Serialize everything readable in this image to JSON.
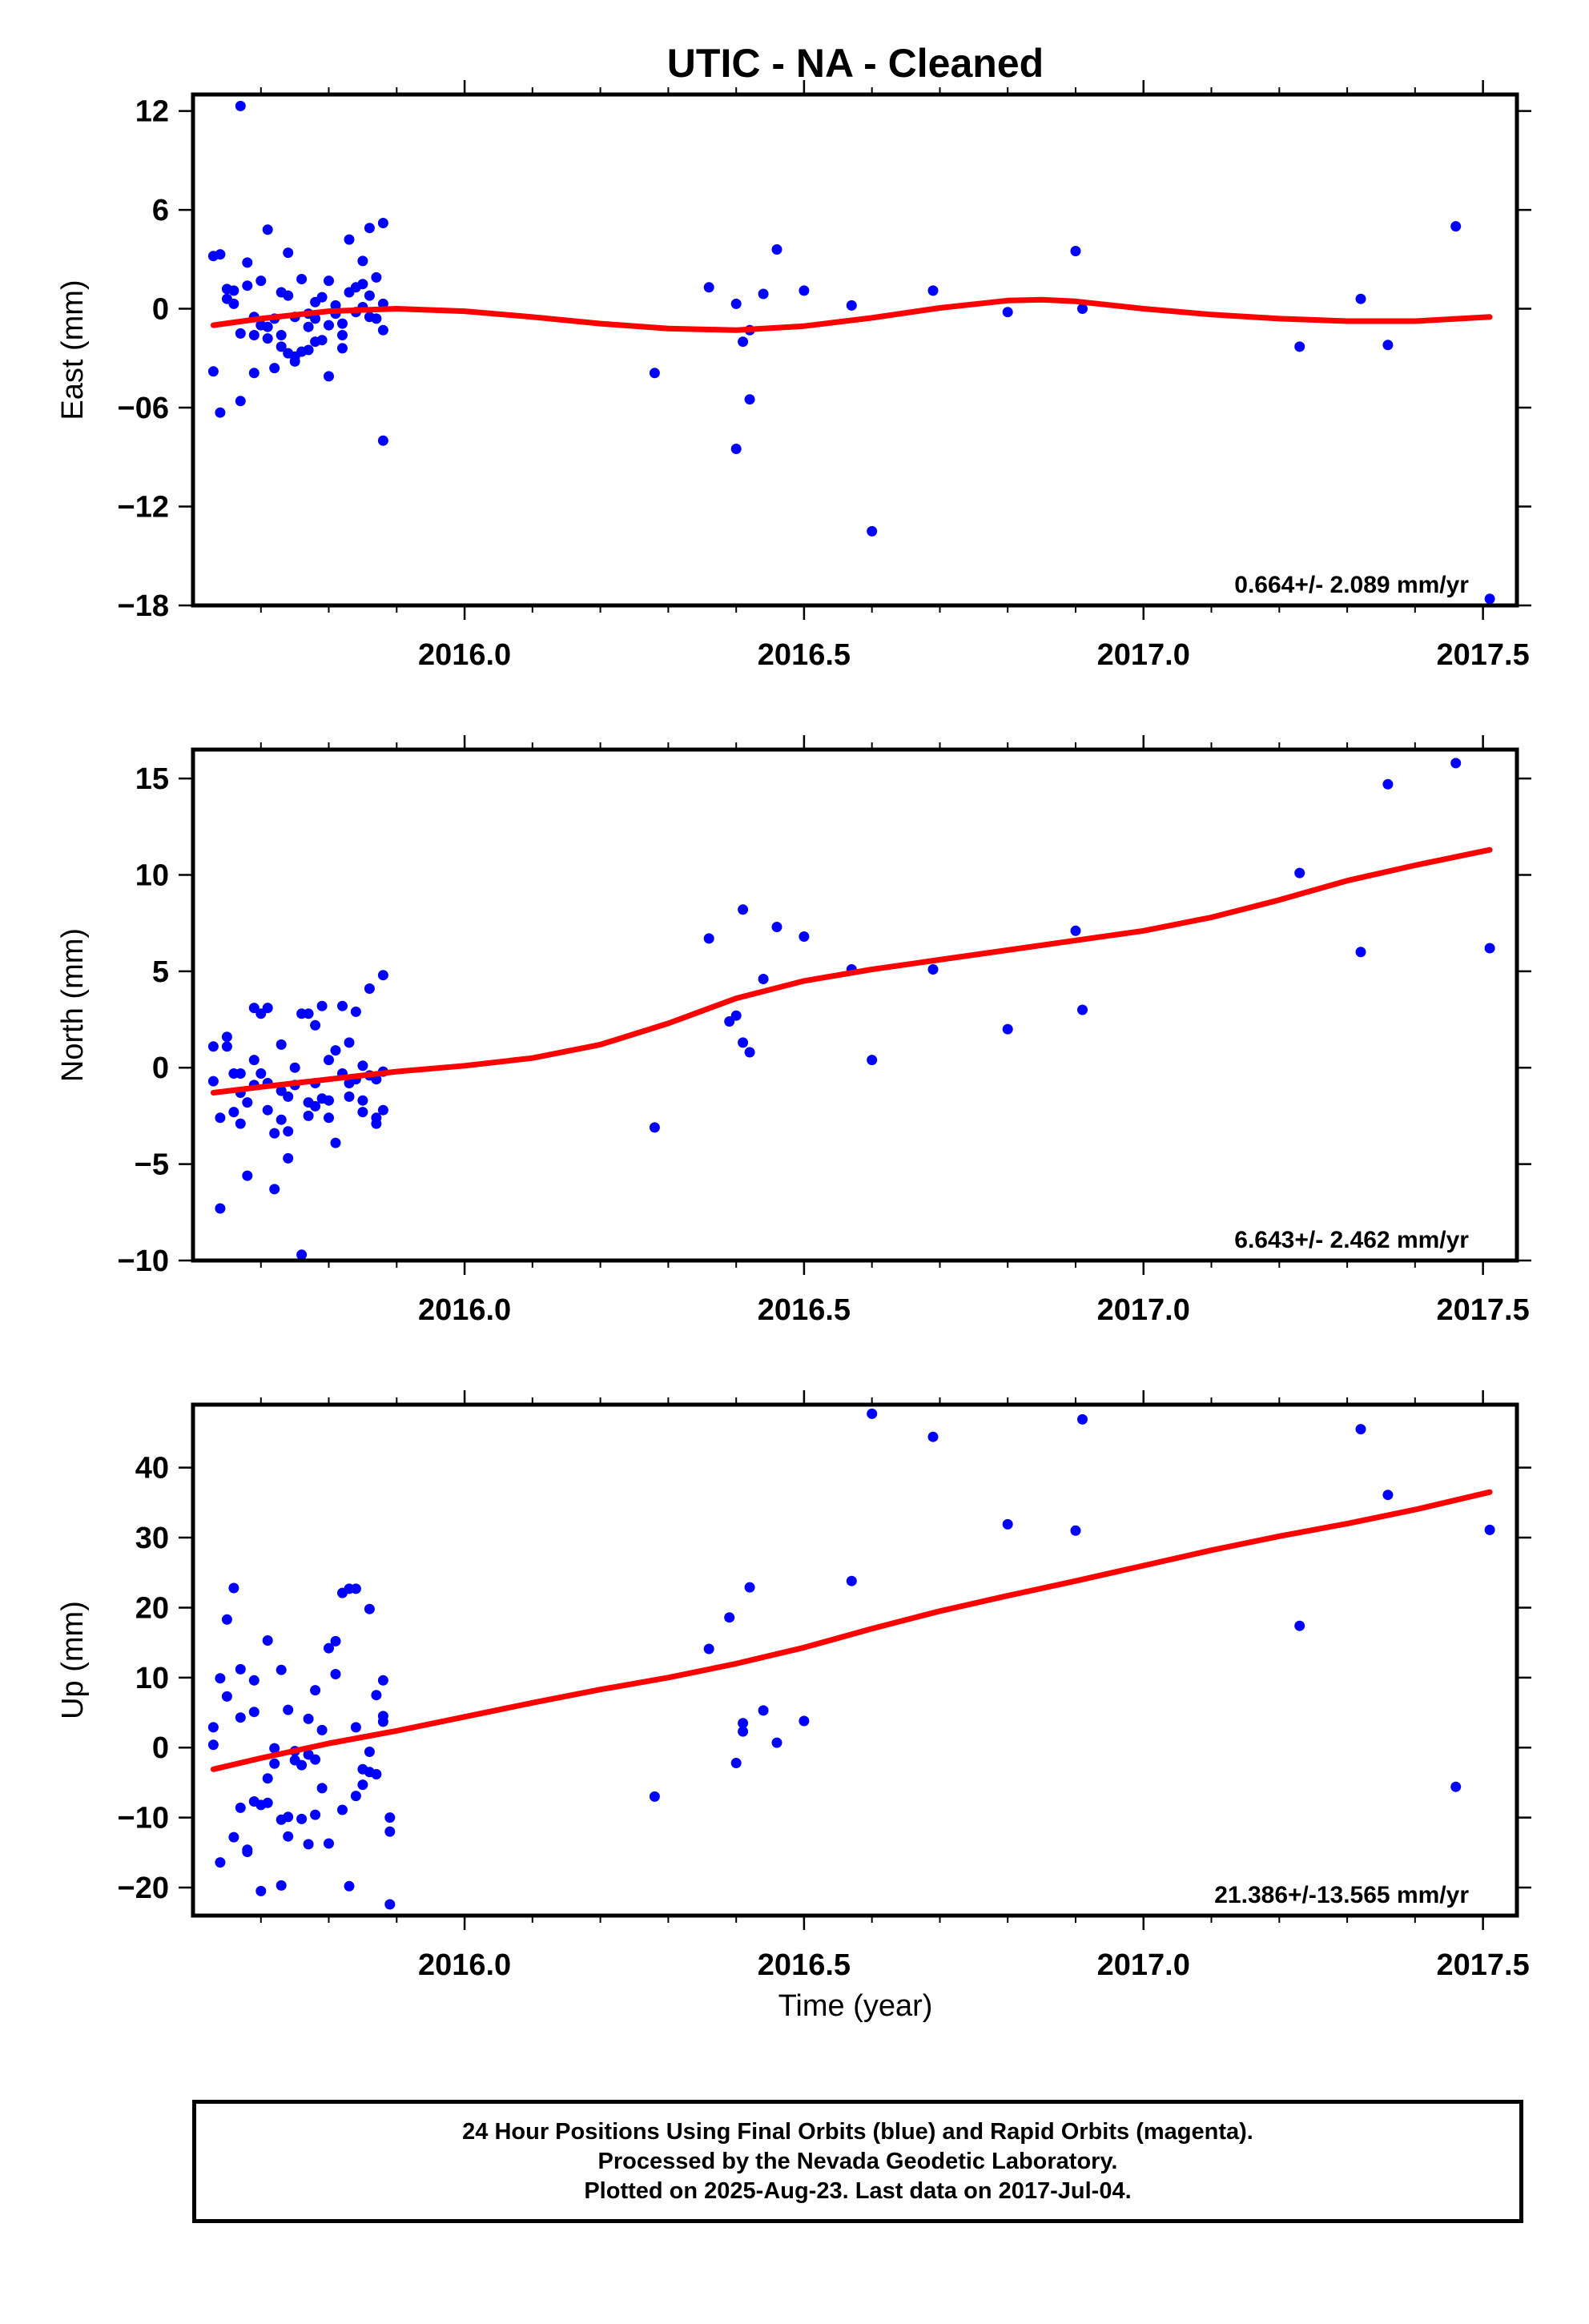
{
  "title": "UTIC  - NA - Cleaned",
  "xlabel": "Time (year)",
  "colors": {
    "points": "#0000ff",
    "fit": "#ff0000",
    "axes": "#000000"
  },
  "footer": {
    "line1": "24 Hour Positions Using Final Orbits (blue) and Rapid Orbits (magenta).",
    "line2": "Processed by the Nevada Geodetic Laboratory.",
    "line3": "Plotted on 2025-Aug-23. Last data on 2017-Jul-04."
  },
  "chart_data": [
    {
      "type": "scatter",
      "ylabel": "East (mm)",
      "rate": "0.664+/- 2.089 mm/yr",
      "xlim": [
        2015.6,
        2017.55
      ],
      "ylim": [
        -18,
        13
      ],
      "xticks": [
        2016.0,
        2016.5,
        2017.0,
        2017.5
      ],
      "xticklabels": [
        "2016.0",
        "2016.5",
        "2017.0",
        "2017.5"
      ],
      "yticks": [
        12,
        6,
        0,
        -6,
        -12,
        -18
      ],
      "yticklabels": [
        "12",
        "6",
        "0",
        "−06",
        "−12",
        "−18"
      ],
      "points": [
        [
          2015.63,
          3.2
        ],
        [
          2015.64,
          3.3
        ],
        [
          2015.63,
          -3.8
        ],
        [
          2015.64,
          -6.3
        ],
        [
          2015.65,
          0.6
        ],
        [
          2015.65,
          1.2
        ],
        [
          2015.66,
          1.1
        ],
        [
          2015.66,
          0.3
        ],
        [
          2015.67,
          12.3
        ],
        [
          2015.67,
          -1.5
        ],
        [
          2015.67,
          -5.6
        ],
        [
          2015.68,
          2.8
        ],
        [
          2015.68,
          1.4
        ],
        [
          2015.69,
          -1.6
        ],
        [
          2015.69,
          -0.5
        ],
        [
          2015.69,
          -3.9
        ],
        [
          2015.7,
          -1.0
        ],
        [
          2015.7,
          1.7
        ],
        [
          2015.71,
          4.8
        ],
        [
          2015.71,
          -1.8
        ],
        [
          2015.71,
          -1.1
        ],
        [
          2015.72,
          -3.6
        ],
        [
          2015.72,
          -0.6
        ],
        [
          2015.73,
          -2.3
        ],
        [
          2015.73,
          -1.6
        ],
        [
          2015.73,
          1.0
        ],
        [
          2015.74,
          0.8
        ],
        [
          2015.74,
          3.4
        ],
        [
          2015.74,
          -2.7
        ],
        [
          2015.75,
          -0.5
        ],
        [
          2015.75,
          -3.2
        ],
        [
          2015.75,
          -2.9
        ],
        [
          2015.76,
          -2.6
        ],
        [
          2015.76,
          1.8
        ],
        [
          2015.77,
          -0.3
        ],
        [
          2015.77,
          -2.5
        ],
        [
          2015.77,
          -1.1
        ],
        [
          2015.78,
          0.4
        ],
        [
          2015.78,
          -2.0
        ],
        [
          2015.78,
          -0.6
        ],
        [
          2015.79,
          0.7
        ],
        [
          2015.79,
          -1.9
        ],
        [
          2015.8,
          -4.1
        ],
        [
          2015.8,
          1.7
        ],
        [
          2015.8,
          -1.0
        ],
        [
          2015.81,
          0.2
        ],
        [
          2015.81,
          -0.3
        ],
        [
          2015.82,
          -1.6
        ],
        [
          2015.82,
          -2.4
        ],
        [
          2015.82,
          -0.9
        ],
        [
          2015.83,
          4.2
        ],
        [
          2015.83,
          1.0
        ],
        [
          2015.84,
          1.3
        ],
        [
          2015.84,
          -0.2
        ],
        [
          2015.85,
          1.5
        ],
        [
          2015.85,
          2.9
        ],
        [
          2015.85,
          0.1
        ],
        [
          2015.86,
          -0.5
        ],
        [
          2015.86,
          4.9
        ],
        [
          2015.86,
          0.8
        ],
        [
          2015.87,
          1.9
        ],
        [
          2015.87,
          -0.6
        ],
        [
          2015.88,
          -1.3
        ],
        [
          2015.88,
          0.3
        ],
        [
          2015.88,
          5.2
        ],
        [
          2015.88,
          -8.0
        ],
        [
          2016.28,
          -3.9
        ],
        [
          2016.36,
          1.3
        ],
        [
          2016.4,
          0.3
        ],
        [
          2016.4,
          -8.5
        ],
        [
          2016.41,
          -2.0
        ],
        [
          2016.42,
          -1.3
        ],
        [
          2016.42,
          -5.5
        ],
        [
          2016.44,
          0.9
        ],
        [
          2016.46,
          3.6
        ],
        [
          2016.5,
          1.1
        ],
        [
          2016.57,
          0.2
        ],
        [
          2016.6,
          -13.5
        ],
        [
          2016.69,
          1.1
        ],
        [
          2016.8,
          -0.2
        ],
        [
          2016.9,
          3.5
        ],
        [
          2016.91,
          0.0
        ],
        [
          2017.23,
          -2.3
        ],
        [
          2017.32,
          0.6
        ],
        [
          2017.36,
          -2.2
        ],
        [
          2017.46,
          5.0
        ],
        [
          2017.51,
          -17.6
        ]
      ],
      "fit": [
        [
          2015.63,
          -1.0
        ],
        [
          2015.7,
          -0.6
        ],
        [
          2015.8,
          -0.15
        ],
        [
          2015.9,
          0.0
        ],
        [
          2016.0,
          -0.15
        ],
        [
          2016.1,
          -0.5
        ],
        [
          2016.2,
          -0.9
        ],
        [
          2016.3,
          -1.2
        ],
        [
          2016.4,
          -1.3
        ],
        [
          2016.5,
          -1.05
        ],
        [
          2016.6,
          -0.55
        ],
        [
          2016.7,
          0.05
        ],
        [
          2016.8,
          0.5
        ],
        [
          2016.85,
          0.55
        ],
        [
          2016.9,
          0.45
        ],
        [
          2017.0,
          0.0
        ],
        [
          2017.1,
          -0.35
        ],
        [
          2017.2,
          -0.6
        ],
        [
          2017.3,
          -0.75
        ],
        [
          2017.4,
          -0.75
        ],
        [
          2017.51,
          -0.5
        ]
      ]
    },
    {
      "type": "scatter",
      "ylabel": "North (mm)",
      "rate": "6.643+/- 2.462 mm/yr",
      "xlim": [
        2015.6,
        2017.55
      ],
      "ylim": [
        -10,
        16.5
      ],
      "xticks": [
        2016.0,
        2016.5,
        2017.0,
        2017.5
      ],
      "xticklabels": [
        "2016.0",
        "2016.5",
        "2017.0",
        "2017.5"
      ],
      "yticks": [
        15,
        10,
        5,
        0,
        -5,
        -10
      ],
      "yticklabels": [
        "15",
        "10",
        "5",
        "0",
        "−5",
        "−10"
      ],
      "points": [
        [
          2015.63,
          1.1
        ],
        [
          2015.63,
          -0.7
        ],
        [
          2015.64,
          -7.3
        ],
        [
          2015.64,
          -2.6
        ],
        [
          2015.65,
          1.1
        ],
        [
          2015.65,
          1.6
        ],
        [
          2015.66,
          -0.3
        ],
        [
          2015.66,
          -2.3
        ],
        [
          2015.67,
          -0.3
        ],
        [
          2015.67,
          -1.3
        ],
        [
          2015.67,
          -2.9
        ],
        [
          2015.68,
          -5.6
        ],
        [
          2015.68,
          -1.8
        ],
        [
          2015.69,
          0.4
        ],
        [
          2015.69,
          -0.9
        ],
        [
          2015.69,
          3.1
        ],
        [
          2015.7,
          2.8
        ],
        [
          2015.7,
          -0.3
        ],
        [
          2015.71,
          3.1
        ],
        [
          2015.71,
          -2.2
        ],
        [
          2015.71,
          -0.8
        ],
        [
          2015.72,
          -3.4
        ],
        [
          2015.72,
          -6.3
        ],
        [
          2015.73,
          1.2
        ],
        [
          2015.73,
          -1.2
        ],
        [
          2015.73,
          -2.7
        ],
        [
          2015.74,
          -4.7
        ],
        [
          2015.74,
          -3.3
        ],
        [
          2015.74,
          -1.5
        ],
        [
          2015.75,
          -0.9
        ],
        [
          2015.75,
          0.0
        ],
        [
          2015.76,
          -9.7
        ],
        [
          2015.76,
          2.8
        ],
        [
          2015.77,
          -1.8
        ],
        [
          2015.77,
          -2.5
        ],
        [
          2015.77,
          2.8
        ],
        [
          2015.78,
          -0.8
        ],
        [
          2015.78,
          2.2
        ],
        [
          2015.78,
          -2.0
        ],
        [
          2015.79,
          -1.6
        ],
        [
          2015.79,
          3.2
        ],
        [
          2015.8,
          0.4
        ],
        [
          2015.8,
          -2.6
        ],
        [
          2015.8,
          -1.7
        ],
        [
          2015.81,
          -3.9
        ],
        [
          2015.81,
          0.9
        ],
        [
          2015.82,
          -0.3
        ],
        [
          2015.82,
          3.2
        ],
        [
          2015.83,
          -1.5
        ],
        [
          2015.83,
          -0.8
        ],
        [
          2015.83,
          1.3
        ],
        [
          2015.84,
          2.9
        ],
        [
          2015.84,
          -0.6
        ],
        [
          2015.85,
          -1.7
        ],
        [
          2015.85,
          0.1
        ],
        [
          2015.85,
          -2.3
        ],
        [
          2015.86,
          4.1
        ],
        [
          2015.86,
          -0.4
        ],
        [
          2015.87,
          -0.6
        ],
        [
          2015.87,
          -2.9
        ],
        [
          2015.88,
          4.8
        ],
        [
          2015.88,
          -0.2
        ],
        [
          2015.88,
          -2.2
        ],
        [
          2015.87,
          -2.6
        ],
        [
          2016.28,
          -3.1
        ],
        [
          2016.36,
          6.7
        ],
        [
          2016.39,
          2.4
        ],
        [
          2016.4,
          2.7
        ],
        [
          2016.41,
          8.2
        ],
        [
          2016.41,
          1.3
        ],
        [
          2016.42,
          0.8
        ],
        [
          2016.44,
          4.6
        ],
        [
          2016.46,
          7.3
        ],
        [
          2016.5,
          6.8
        ],
        [
          2016.57,
          5.1
        ],
        [
          2016.6,
          0.4
        ],
        [
          2016.69,
          5.1
        ],
        [
          2016.8,
          2.0
        ],
        [
          2016.9,
          7.1
        ],
        [
          2016.91,
          3.0
        ],
        [
          2017.23,
          10.1
        ],
        [
          2017.32,
          6.0
        ],
        [
          2017.36,
          14.7
        ],
        [
          2017.46,
          15.8
        ],
        [
          2017.51,
          6.2
        ]
      ],
      "fit": [
        [
          2015.63,
          -1.3
        ],
        [
          2015.7,
          -1.0
        ],
        [
          2015.8,
          -0.6
        ],
        [
          2015.9,
          -0.2
        ],
        [
          2016.0,
          0.1
        ],
        [
          2016.1,
          0.5
        ],
        [
          2016.2,
          1.2
        ],
        [
          2016.3,
          2.3
        ],
        [
          2016.4,
          3.6
        ],
        [
          2016.5,
          4.5
        ],
        [
          2016.6,
          5.1
        ],
        [
          2016.7,
          5.6
        ],
        [
          2016.8,
          6.1
        ],
        [
          2016.9,
          6.6
        ],
        [
          2017.0,
          7.1
        ],
        [
          2017.1,
          7.8
        ],
        [
          2017.2,
          8.7
        ],
        [
          2017.3,
          9.7
        ],
        [
          2017.4,
          10.5
        ],
        [
          2017.51,
          11.3
        ]
      ]
    },
    {
      "type": "scatter",
      "ylabel": "Up (mm)",
      "rate": "21.386+/-13.565 mm/yr",
      "xlim": [
        2015.6,
        2017.55
      ],
      "ylim": [
        -24,
        49
      ],
      "xticks": [
        2016.0,
        2016.5,
        2017.0,
        2017.5
      ],
      "xticklabels": [
        "2016.0",
        "2016.5",
        "2017.0",
        "2017.5"
      ],
      "yticks": [
        40,
        30,
        20,
        10,
        0,
        -10,
        -20
      ],
      "yticklabels": [
        "40",
        "30",
        "20",
        "10",
        "0",
        "−10",
        "−20"
      ],
      "points": [
        [
          2015.63,
          0.4
        ],
        [
          2015.63,
          2.9
        ],
        [
          2015.64,
          -16.4
        ],
        [
          2015.64,
          9.9
        ],
        [
          2015.65,
          18.3
        ],
        [
          2015.65,
          7.3
        ],
        [
          2015.66,
          22.8
        ],
        [
          2015.66,
          -12.8
        ],
        [
          2015.67,
          4.3
        ],
        [
          2015.67,
          -8.6
        ],
        [
          2015.67,
          11.2
        ],
        [
          2015.68,
          -14.6
        ],
        [
          2015.68,
          -14.9
        ],
        [
          2015.69,
          9.6
        ],
        [
          2015.69,
          5.1
        ],
        [
          2015.69,
          -7.7
        ],
        [
          2015.7,
          -20.5
        ],
        [
          2015.7,
          -8.2
        ],
        [
          2015.71,
          -4.4
        ],
        [
          2015.71,
          -7.9
        ],
        [
          2015.71,
          15.3
        ],
        [
          2015.72,
          -2.3
        ],
        [
          2015.72,
          -0.1
        ],
        [
          2015.73,
          11.1
        ],
        [
          2015.73,
          -10.3
        ],
        [
          2015.73,
          -19.7
        ],
        [
          2015.74,
          5.4
        ],
        [
          2015.74,
          -12.7
        ],
        [
          2015.74,
          -9.9
        ],
        [
          2015.75,
          -1.8
        ],
        [
          2015.75,
          -0.5
        ],
        [
          2015.76,
          -2.5
        ],
        [
          2015.76,
          -10.2
        ],
        [
          2015.77,
          4.1
        ],
        [
          2015.77,
          -1.0
        ],
        [
          2015.77,
          -13.8
        ],
        [
          2015.78,
          -1.7
        ],
        [
          2015.78,
          8.2
        ],
        [
          2015.78,
          -9.6
        ],
        [
          2015.79,
          -5.8
        ],
        [
          2015.79,
          2.5
        ],
        [
          2015.8,
          14.2
        ],
        [
          2015.8,
          -13.7
        ],
        [
          2015.81,
          15.2
        ],
        [
          2015.81,
          10.5
        ],
        [
          2015.82,
          -8.9
        ],
        [
          2015.82,
          22.1
        ],
        [
          2015.83,
          -19.8
        ],
        [
          2015.83,
          22.7
        ],
        [
          2015.84,
          2.9
        ],
        [
          2015.84,
          -6.9
        ],
        [
          2015.84,
          22.7
        ],
        [
          2015.85,
          -5.3
        ],
        [
          2015.85,
          -3.1
        ],
        [
          2015.86,
          -0.6
        ],
        [
          2015.86,
          -3.5
        ],
        [
          2015.86,
          19.8
        ],
        [
          2015.87,
          -3.8
        ],
        [
          2015.87,
          7.5
        ],
        [
          2015.88,
          4.5
        ],
        [
          2015.88,
          9.6
        ],
        [
          2015.88,
          3.7
        ],
        [
          2015.89,
          -10.0
        ],
        [
          2015.89,
          -12.0
        ],
        [
          2015.89,
          -22.4
        ],
        [
          2016.28,
          -7.0
        ],
        [
          2016.36,
          14.1
        ],
        [
          2016.39,
          18.6
        ],
        [
          2016.4,
          -2.2
        ],
        [
          2016.41,
          2.3
        ],
        [
          2016.41,
          3.5
        ],
        [
          2016.42,
          22.9
        ],
        [
          2016.44,
          5.3
        ],
        [
          2016.46,
          0.7
        ],
        [
          2016.5,
          3.8
        ],
        [
          2016.57,
          23.8
        ],
        [
          2016.6,
          47.7
        ],
        [
          2016.69,
          44.4
        ],
        [
          2016.8,
          31.9
        ],
        [
          2016.9,
          31.0
        ],
        [
          2016.91,
          46.9
        ],
        [
          2017.23,
          17.4
        ],
        [
          2017.32,
          45.5
        ],
        [
          2017.36,
          36.1
        ],
        [
          2017.46,
          -5.6
        ],
        [
          2017.51,
          31.1
        ]
      ],
      "fit": [
        [
          2015.63,
          -3.1
        ],
        [
          2015.7,
          -1.5
        ],
        [
          2015.8,
          0.6
        ],
        [
          2015.9,
          2.4
        ],
        [
          2016.0,
          4.4
        ],
        [
          2016.1,
          6.4
        ],
        [
          2016.2,
          8.3
        ],
        [
          2016.3,
          10.0
        ],
        [
          2016.4,
          12.0
        ],
        [
          2016.5,
          14.3
        ],
        [
          2016.6,
          17.0
        ],
        [
          2016.7,
          19.5
        ],
        [
          2016.8,
          21.7
        ],
        [
          2016.9,
          23.8
        ],
        [
          2017.0,
          26.0
        ],
        [
          2017.1,
          28.2
        ],
        [
          2017.2,
          30.2
        ],
        [
          2017.3,
          32.0
        ],
        [
          2017.4,
          34.0
        ],
        [
          2017.51,
          36.5
        ]
      ]
    }
  ]
}
